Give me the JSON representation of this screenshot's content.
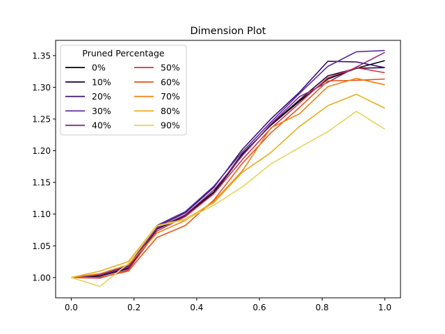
{
  "chart_data": {
    "type": "line",
    "title": "Dimension Plot",
    "xlabel": "",
    "ylabel": "",
    "xlim": [
      -0.05,
      1.05
    ],
    "ylim": [
      0.968,
      1.374
    ],
    "xticks": [
      0.0,
      0.2,
      0.4,
      0.6,
      0.8,
      1.0
    ],
    "xtick_labels": [
      "0.0",
      "0.2",
      "0.4",
      "0.6",
      "0.8",
      "1.0"
    ],
    "yticks": [
      1.0,
      1.05,
      1.1,
      1.15,
      1.2,
      1.25,
      1.3,
      1.35
    ],
    "ytick_labels": [
      "1.00",
      "1.05",
      "1.10",
      "1.15",
      "1.20",
      "1.25",
      "1.30",
      "1.35"
    ],
    "grid": false,
    "legend": {
      "title": "Pruned Percentage",
      "placement": "top-left",
      "columns": 2
    },
    "x": [
      0.0,
      0.0909,
      0.1818,
      0.2727,
      0.3636,
      0.4545,
      0.5455,
      0.6364,
      0.7273,
      0.8182,
      0.9091,
      1.0
    ],
    "series": [
      {
        "name": "0%",
        "color": "#000004",
        "values": [
          1.0,
          1.003,
          1.015,
          1.078,
          1.098,
          1.135,
          1.195,
          1.24,
          1.278,
          1.313,
          1.33,
          1.342
        ]
      },
      {
        "name": "10%",
        "color": "#1b0c41",
        "values": [
          1.0,
          1.002,
          1.014,
          1.076,
          1.097,
          1.133,
          1.193,
          1.241,
          1.28,
          1.318,
          1.33,
          1.331
        ]
      },
      {
        "name": "20%",
        "color": "#3b0f70",
        "values": [
          1.0,
          1.005,
          1.018,
          1.08,
          1.102,
          1.142,
          1.202,
          1.25,
          1.292,
          1.341,
          1.34,
          1.331
        ]
      },
      {
        "name": "30%",
        "color": "#5a2ca0",
        "values": [
          1.0,
          1.006,
          1.017,
          1.082,
          1.104,
          1.144,
          1.198,
          1.245,
          1.29,
          1.333,
          1.356,
          1.358
        ]
      },
      {
        "name": "40%",
        "color": "#8c2981",
        "values": [
          1.0,
          1.004,
          1.016,
          1.078,
          1.099,
          1.138,
          1.192,
          1.242,
          1.285,
          1.308,
          1.332,
          1.355
        ]
      },
      {
        "name": "50%",
        "color": "#d3304a",
        "values": [
          1.0,
          0.999,
          1.012,
          1.073,
          1.096,
          1.132,
          1.186,
          1.235,
          1.275,
          1.315,
          1.331,
          1.323
        ]
      },
      {
        "name": "60%",
        "color": "#e8551d",
        "values": [
          1.0,
          1.0,
          1.01,
          1.063,
          1.082,
          1.122,
          1.18,
          1.228,
          1.268,
          1.31,
          1.311,
          1.313
        ]
      },
      {
        "name": "70%",
        "color": "#f07f0d",
        "values": [
          1.0,
          1.006,
          1.02,
          1.07,
          1.09,
          1.12,
          1.168,
          1.236,
          1.258,
          1.301,
          1.314,
          1.304
        ]
      },
      {
        "name": "80%",
        "color": "#e8ad1c",
        "values": [
          1.0,
          1.01,
          1.025,
          1.082,
          1.092,
          1.118,
          1.166,
          1.197,
          1.238,
          1.271,
          1.289,
          1.267
        ]
      },
      {
        "name": "90%",
        "color": "#e6d35a",
        "values": [
          1.0,
          0.986,
          1.022,
          1.081,
          1.091,
          1.114,
          1.143,
          1.179,
          1.205,
          1.23,
          1.262,
          1.234
        ]
      }
    ]
  }
}
